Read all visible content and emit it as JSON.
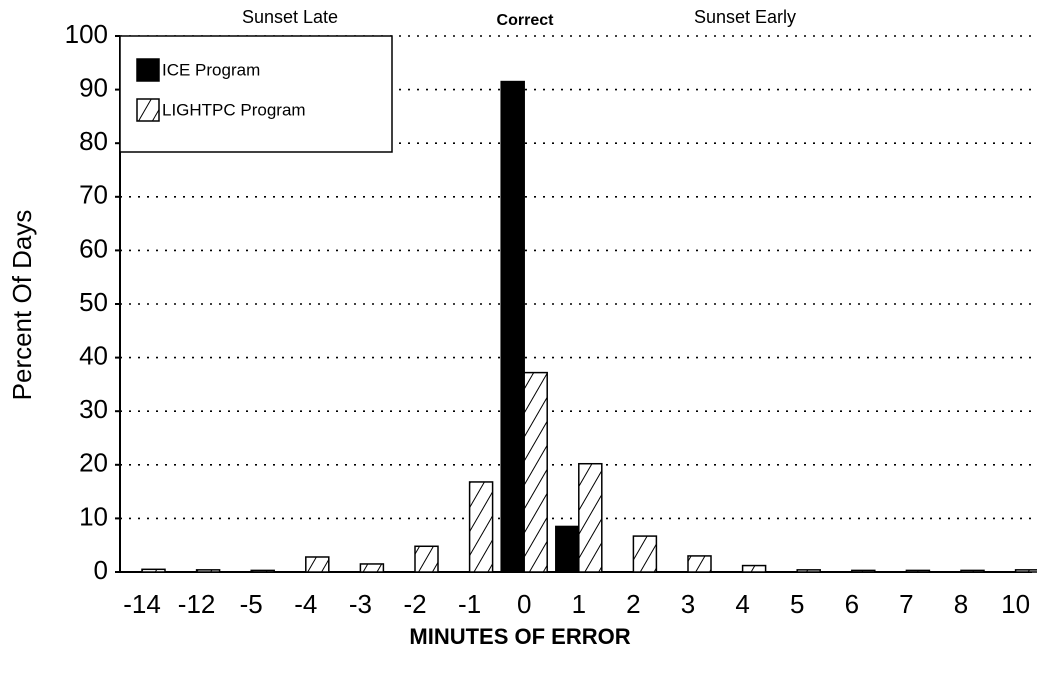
{
  "chart_data": {
    "type": "bar",
    "x_label": "MINUTES OF ERROR",
    "y_label": "Percent Of Days",
    "annotations": [
      "Sunset Late",
      "Correct",
      "Sunset Early"
    ],
    "categories": [
      "-14",
      "-12",
      "-5",
      "-4",
      "-3",
      "-2",
      "-1",
      "0",
      "1",
      "2",
      "3",
      "4",
      "5",
      "6",
      "7",
      "8",
      "10"
    ],
    "series": [
      {
        "name": "ICE Program",
        "color": "#000000",
        "values": [
          0,
          0,
          0,
          0,
          0,
          0,
          0,
          91.5,
          8.5,
          0,
          0,
          0,
          0,
          0,
          0,
          0,
          0
        ]
      },
      {
        "name": "LIGHTPC Program",
        "color": "#ffffff",
        "hatch": true,
        "values": [
          0.5,
          0.4,
          0.3,
          2.8,
          1.5,
          4.8,
          16.8,
          37.2,
          20.2,
          6.7,
          3,
          1.2,
          0.4,
          0.3,
          0.3,
          0.3,
          0.4
        ]
      }
    ],
    "ylim": [
      0,
      100
    ],
    "yticks": [
      0,
      10,
      20,
      30,
      40,
      50,
      60,
      70,
      80,
      90,
      100
    ],
    "grid": true,
    "legend": "upper left"
  }
}
